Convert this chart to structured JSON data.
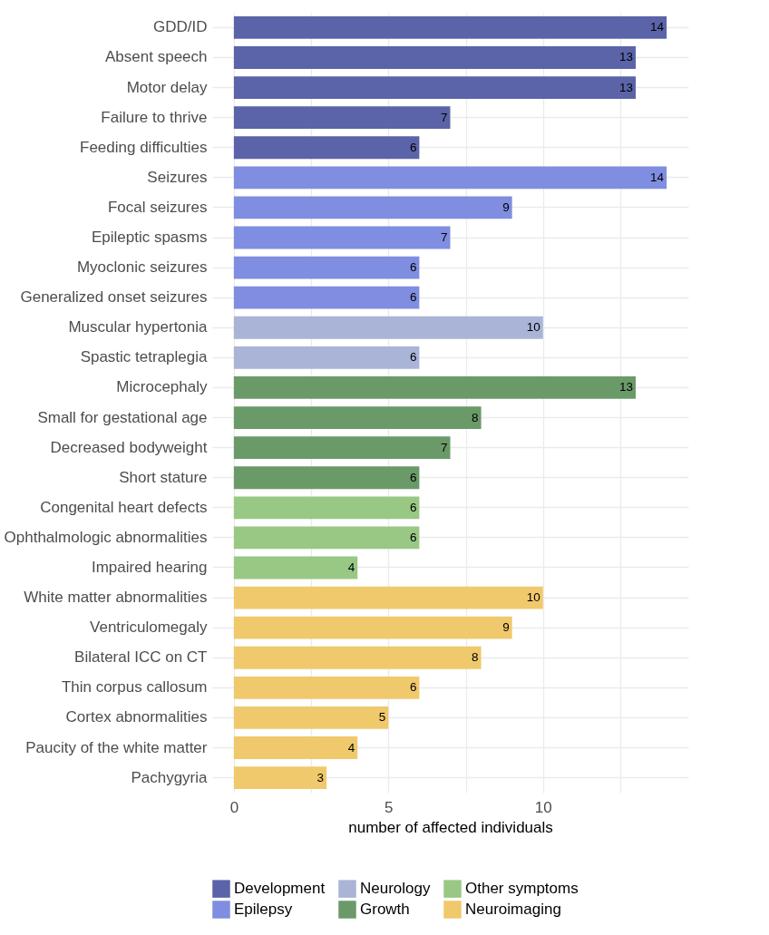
{
  "chart_data": {
    "type": "bar",
    "orientation": "horizontal",
    "xlabel": "number of affected individuals",
    "categories": [
      "GDD/ID",
      "Absent speech",
      "Motor delay",
      "Failure to thrive",
      "Feeding difficulties",
      "Seizures",
      "Focal seizures",
      "Epileptic spasms",
      "Myoclonic seizures",
      "Generalized onset seizures",
      "Muscular hypertonia",
      "Spastic tetraplegia",
      "Microcephaly",
      "Small for gestational age",
      "Decreased bodyweight",
      "Short stature",
      "Congenital heart defects",
      "Ophthalmologic abnormalities",
      "Impaired hearing",
      "White matter abnormalities",
      "Ventriculomegaly",
      "Bilateral ICC on CT",
      "Thin corpus callosum",
      "Cortex abnormalities",
      "Paucity of the white matter",
      "Pachygyria"
    ],
    "series": [
      {
        "name": "Development",
        "color": "#5b64a8",
        "values": [
          14,
          13,
          13,
          7,
          6,
          null,
          null,
          null,
          null,
          null,
          null,
          null,
          null,
          null,
          null,
          null,
          null,
          null,
          null,
          null,
          null,
          null,
          null,
          null,
          null,
          null
        ]
      },
      {
        "name": "Epilepsy",
        "color": "#7f8ee0",
        "values": [
          null,
          null,
          null,
          null,
          null,
          14,
          9,
          7,
          6,
          6,
          null,
          null,
          null,
          null,
          null,
          null,
          null,
          null,
          null,
          null,
          null,
          null,
          null,
          null,
          null,
          null
        ]
      },
      {
        "name": "Neurology",
        "color": "#aab4d6",
        "values": [
          null,
          null,
          null,
          null,
          null,
          null,
          null,
          null,
          null,
          null,
          10,
          6,
          null,
          null,
          null,
          null,
          null,
          null,
          null,
          null,
          null,
          null,
          null,
          null,
          null,
          null
        ]
      },
      {
        "name": "Growth",
        "color": "#6a9a68",
        "values": [
          null,
          null,
          null,
          null,
          null,
          null,
          null,
          null,
          null,
          null,
          null,
          null,
          13,
          8,
          7,
          6,
          null,
          null,
          null,
          null,
          null,
          null,
          null,
          null,
          null,
          null
        ]
      },
      {
        "name": "Other symptoms",
        "color": "#98c884",
        "values": [
          null,
          null,
          null,
          null,
          null,
          null,
          null,
          null,
          null,
          null,
          null,
          null,
          null,
          null,
          null,
          null,
          6,
          6,
          4,
          null,
          null,
          null,
          null,
          null,
          null,
          null
        ]
      },
      {
        "name": "Neuroimaging",
        "color": "#f0c96c",
        "values": [
          null,
          null,
          null,
          null,
          null,
          null,
          null,
          null,
          null,
          null,
          null,
          null,
          null,
          null,
          null,
          null,
          null,
          null,
          null,
          10,
          9,
          8,
          6,
          5,
          4,
          3
        ]
      }
    ],
    "xlim": [
      -0.7,
      14.7
    ],
    "xticks": [
      0,
      {
        "value": 2.5,
        "label": null
      },
      5,
      {
        "value": 7.5,
        "label": null
      },
      10,
      {
        "value": 12.5,
        "label": null
      }
    ],
    "grid": true,
    "legend": "bottom",
    "data_labels": true
  }
}
